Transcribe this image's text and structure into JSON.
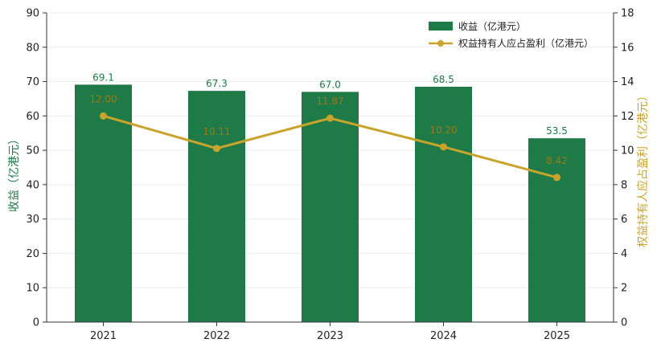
{
  "chart_data": {
    "type": "bar",
    "categories": [
      "2021",
      "2022",
      "2023",
      "2024",
      "2025"
    ],
    "series": [
      {
        "name": "收益（亿港元）",
        "type": "bar",
        "axis": "left",
        "values": [
          69.1,
          67.3,
          67.0,
          68.5,
          53.5
        ],
        "labels": [
          "69.1",
          "67.3",
          "67.0",
          "68.5",
          "53.5"
        ]
      },
      {
        "name": "权益持有人应占盈利（亿港元）",
        "type": "line",
        "axis": "right",
        "values": [
          12.0,
          10.11,
          11.87,
          10.2,
          8.42
        ],
        "labels": [
          "12.00",
          "10.11",
          "11.87",
          "10.20",
          "8.42"
        ]
      }
    ],
    "ylabel": "收益（亿港元）",
    "y2label": "权益持有人应占盈利（亿港元）",
    "ylim": [
      0,
      90
    ],
    "y2lim": [
      0,
      18
    ],
    "yticks": [
      "0",
      "10",
      "20",
      "30",
      "40",
      "50",
      "60",
      "70",
      "80",
      "90"
    ],
    "y2ticks": [
      "0",
      "2",
      "4",
      "6",
      "8",
      "10",
      "12",
      "14",
      "16",
      "18"
    ],
    "grid": true,
    "legend_position": "top-right",
    "colors": {
      "bar": "#1e7a46",
      "line": "#c9a42c",
      "bar_label": "#1e7a46",
      "line_label": "#9a7a17",
      "grid": "#ececec"
    }
  }
}
